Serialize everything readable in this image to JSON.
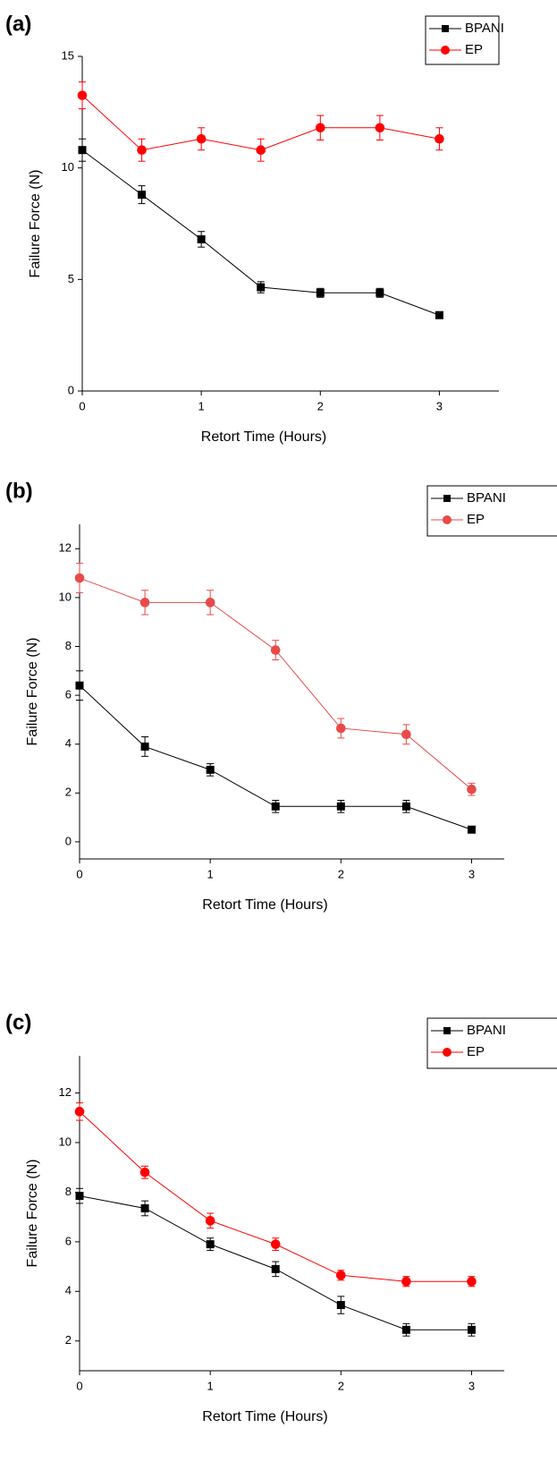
{
  "chart_data": [
    {
      "type": "line",
      "title": "(a)",
      "x_label": "Retort Time (Hours)",
      "y_label": "Failure Force (N)",
      "x": [
        0,
        0.5,
        1,
        1.5,
        2,
        2.5,
        3
      ],
      "xlim": [
        0,
        3.5
      ],
      "xticks": [
        0,
        1,
        2,
        3
      ],
      "ylim": [
        0,
        15
      ],
      "yticks": [
        0,
        5,
        10,
        15
      ],
      "series": [
        {
          "name": "BPANI",
          "color": "#000000",
          "marker": "square",
          "values": [
            10.8,
            8.8,
            6.8,
            4.65,
            4.4,
            4.4,
            3.4
          ],
          "errors": [
            0.5,
            0.4,
            0.35,
            0.25,
            0.2,
            0.2,
            0.1
          ]
        },
        {
          "name": "EP",
          "color": "#ff0000",
          "marker": "circle",
          "values": [
            13.25,
            10.8,
            11.3,
            10.8,
            11.8,
            11.8,
            11.3
          ],
          "errors": [
            0.6,
            0.5,
            0.5,
            0.5,
            0.55,
            0.55,
            0.5
          ]
        }
      ]
    },
    {
      "type": "line",
      "title": "(b)",
      "x_label": "Retort Time (Hours)",
      "y_label": "Failure Force (N)",
      "x": [
        0,
        0.5,
        1,
        1.5,
        2,
        2.5,
        3
      ],
      "xlim": [
        0,
        3.25
      ],
      "xticks": [
        0,
        1,
        2,
        3
      ],
      "ylim": [
        -0.7,
        13
      ],
      "yticks": [
        0,
        2,
        4,
        6,
        8,
        10,
        12
      ],
      "series": [
        {
          "name": "BPANI",
          "color": "#000000",
          "marker": "square",
          "values": [
            6.4,
            3.9,
            2.95,
            1.45,
            1.45,
            1.45,
            0.5
          ],
          "errors": [
            0.6,
            0.4,
            0.25,
            0.25,
            0.25,
            0.25,
            0.05
          ]
        },
        {
          "name": "EP",
          "color": "#e84a4a",
          "marker": "circle",
          "values": [
            10.8,
            9.8,
            9.8,
            7.85,
            4.65,
            4.4,
            2.15
          ],
          "errors": [
            0.6,
            0.5,
            0.5,
            0.4,
            0.4,
            0.4,
            0.25
          ]
        }
      ]
    },
    {
      "type": "line",
      "title": "(c)",
      "x_label": "Retort Time (Hours)",
      "y_label": "Failure Force (N)",
      "x": [
        0,
        0.5,
        1,
        1.5,
        2,
        2.5,
        3
      ],
      "xlim": [
        0,
        3.25
      ],
      "xticks": [
        0,
        1,
        2,
        3
      ],
      "ylim": [
        0.8,
        13.5
      ],
      "yticks": [
        2,
        4,
        6,
        8,
        10,
        12
      ],
      "series": [
        {
          "name": "BPANI",
          "color": "#000000",
          "marker": "square",
          "values": [
            7.85,
            7.35,
            5.9,
            4.9,
            3.45,
            2.45,
            2.45
          ],
          "errors": [
            0.3,
            0.3,
            0.25,
            0.3,
            0.35,
            0.25,
            0.25
          ]
        },
        {
          "name": "EP",
          "color": "#ff0000",
          "marker": "circle",
          "values": [
            11.25,
            8.8,
            6.85,
            5.9,
            4.65,
            4.4,
            4.4
          ],
          "errors": [
            0.35,
            0.25,
            0.3,
            0.25,
            0.2,
            0.2,
            0.2
          ]
        }
      ]
    }
  ]
}
